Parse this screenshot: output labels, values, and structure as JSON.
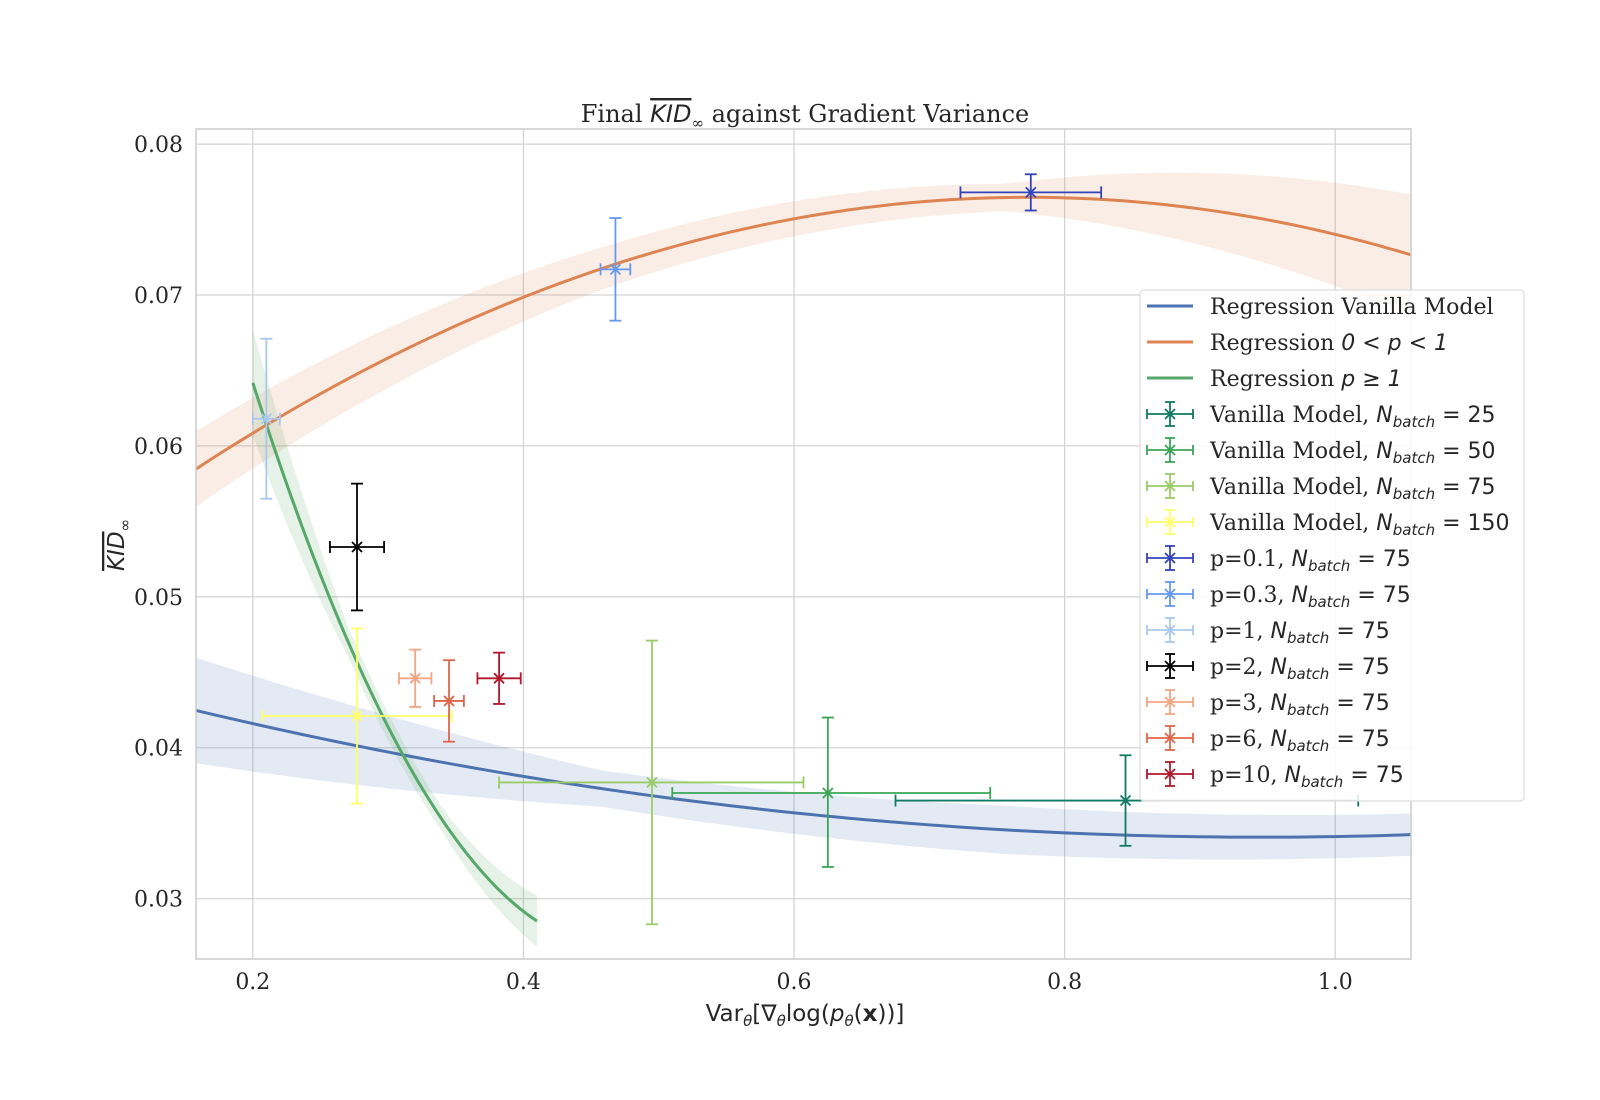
{
  "chart_data": {
    "type": "scatter",
    "title": {
      "prefix": "Final ",
      "kid_symbol": "KID",
      "kid_subscript": "∞",
      "suffix": " against Gradient Variance"
    },
    "xlabel": {
      "var": "Var",
      "var_sub": "θ",
      "open": "[∇",
      "grad_sub": "θ",
      "log": "log(",
      "p": "p",
      "p_sub": "θ",
      "x_open": "(",
      "x_bold": "x",
      "close": "))]"
    },
    "ylabel": {
      "kid_symbol": "KID",
      "kid_subscript": "∞"
    },
    "xlim": [
      0.158,
      1.056
    ],
    "ylim": [
      0.026,
      0.081
    ],
    "x_ticks": [
      0.2,
      0.4,
      0.6,
      0.8,
      1.0
    ],
    "x_tick_labels": [
      "0.2",
      "0.4",
      "0.6",
      "0.8",
      "1.0"
    ],
    "y_ticks": [
      0.03,
      0.04,
      0.05,
      0.06,
      0.07,
      0.08
    ],
    "y_tick_labels": [
      "0.03",
      "0.04",
      "0.05",
      "0.06",
      "0.07",
      "0.08"
    ],
    "grid": true,
    "legend_position": "center-right",
    "regressions": [
      {
        "name_prefix": "Regression Vanilla Model",
        "name_math": "",
        "color": "#4c72b0",
        "band_color": "#4c72b0",
        "x_range": [
          0.158,
          1.056
        ],
        "poly": [
          0.04618,
          -0.02562,
          0.013553
        ],
        "band_halfwidth": [
          0.0035,
          0.0012,
          0.0016,
          0.0014
        ]
      },
      {
        "name_prefix": "Regression ",
        "name_math": "0 < p < 1",
        "color": "#dd8452",
        "band_color": "#dd8452",
        "x_range": [
          0.158,
          1.056
        ],
        "poly": [
          0.04803,
          0.0736,
          -0.04761
        ],
        "band_halfwidth": [
          0.0025,
          0.0014,
          0.0009,
          0.004
        ]
      },
      {
        "name_prefix": "Regression ",
        "name_math": "p ≥ 1",
        "color": "#55a868",
        "band_color": "#55a868",
        "x_range": [
          0.2,
          0.41
        ],
        "poly": [
          0.14155,
          -0.4927,
          0.5293
        ],
        "band_halfwidth": [
          0.0035,
          0.001,
          0.0008,
          0.0017
        ]
      }
    ],
    "series": [
      {
        "name_prefix": "Vanilla Model, ",
        "n_batch": "25",
        "color": "#117a65",
        "x": 0.845,
        "y": 0.0365,
        "xerr": [
          0.17,
          0.172
        ],
        "yerr": [
          0.003,
          0.003
        ]
      },
      {
        "name_prefix": "Vanilla Model, ",
        "n_batch": "50",
        "color": "#3aa655",
        "x": 0.625,
        "y": 0.037,
        "xerr": [
          0.115,
          0.12
        ],
        "yerr": [
          0.0049,
          0.005
        ]
      },
      {
        "name_prefix": "Vanilla Model, ",
        "n_batch": "75",
        "color": "#99cc66",
        "x": 0.495,
        "y": 0.0377,
        "xerr": [
          0.113,
          0.112
        ],
        "yerr": [
          0.0094,
          0.0094
        ]
      },
      {
        "name_prefix": "Vanilla Model, ",
        "n_batch": "150",
        "color": "#ffff66",
        "x": 0.277,
        "y": 0.0421,
        "xerr": [
          0.07,
          0.07
        ],
        "yerr": [
          0.0058,
          0.0058
        ]
      },
      {
        "name_prefix": "p=0.1, ",
        "n_batch": "75",
        "color": "#3344bb",
        "x": 0.775,
        "y": 0.0768,
        "xerr": [
          0.052,
          0.052
        ],
        "yerr": [
          0.0012,
          0.0012
        ]
      },
      {
        "name_prefix": "p=0.3, ",
        "n_batch": "75",
        "color": "#6699ee",
        "x": 0.468,
        "y": 0.0717,
        "xerr": [
          0.011,
          0.011
        ],
        "yerr": [
          0.0034,
          0.0034
        ]
      },
      {
        "name_prefix": "p=1, ",
        "n_batch": "75",
        "color": "#a8c8f0",
        "x": 0.21,
        "y": 0.0618,
        "xerr": [
          0.01,
          0.01
        ],
        "yerr": [
          0.0053,
          0.0053
        ]
      },
      {
        "name_prefix": "p=2, ",
        "n_batch": "75",
        "color": "#000000",
        "x": 0.277,
        "y": 0.0533,
        "xerr": [
          0.02,
          0.02
        ],
        "yerr": [
          0.0042,
          0.0042
        ]
      },
      {
        "name_prefix": "p=3, ",
        "n_batch": "75",
        "color": "#f4a582",
        "x": 0.32,
        "y": 0.0446,
        "xerr": [
          0.012,
          0.012
        ],
        "yerr": [
          0.0019,
          0.0019
        ]
      },
      {
        "name_prefix": "p=6, ",
        "n_batch": "75",
        "color": "#e0664a",
        "x": 0.345,
        "y": 0.0431,
        "xerr": [
          0.011,
          0.011
        ],
        "yerr": [
          0.0027,
          0.0027
        ]
      },
      {
        "name_prefix": "p=10, ",
        "n_batch": "75",
        "color": "#b2182b",
        "x": 0.382,
        "y": 0.0446,
        "xerr": [
          0.016,
          0.016
        ],
        "yerr": [
          0.0017,
          0.0017
        ]
      }
    ]
  }
}
